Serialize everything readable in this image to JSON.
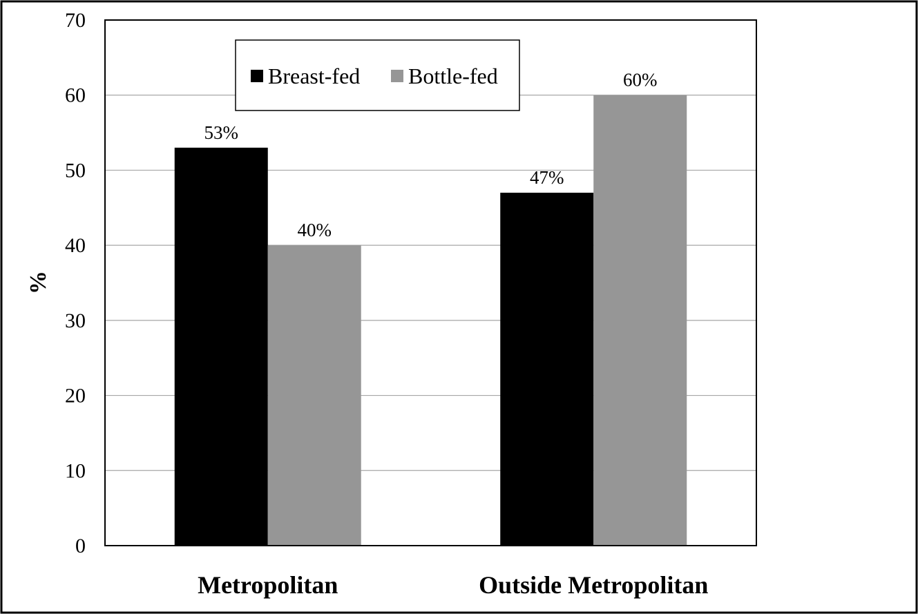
{
  "chart_data": {
    "type": "bar",
    "title": "",
    "xlabel": "",
    "ylabel": "%",
    "ylim": [
      0,
      70
    ],
    "yticks": [
      0,
      10,
      20,
      30,
      40,
      50,
      60,
      70
    ],
    "categories": [
      "Metropolitan",
      "Outside Metropolitan"
    ],
    "series": [
      {
        "name": "Breast-fed",
        "color": "#000000",
        "values": [
          53,
          47
        ],
        "labels": [
          "53%",
          "47%"
        ]
      },
      {
        "name": "Bottle-fed",
        "color": "#969696",
        "values": [
          40,
          60
        ],
        "labels": [
          "40%",
          "60%"
        ]
      }
    ],
    "grid": true,
    "legend_position": "top-left"
  }
}
